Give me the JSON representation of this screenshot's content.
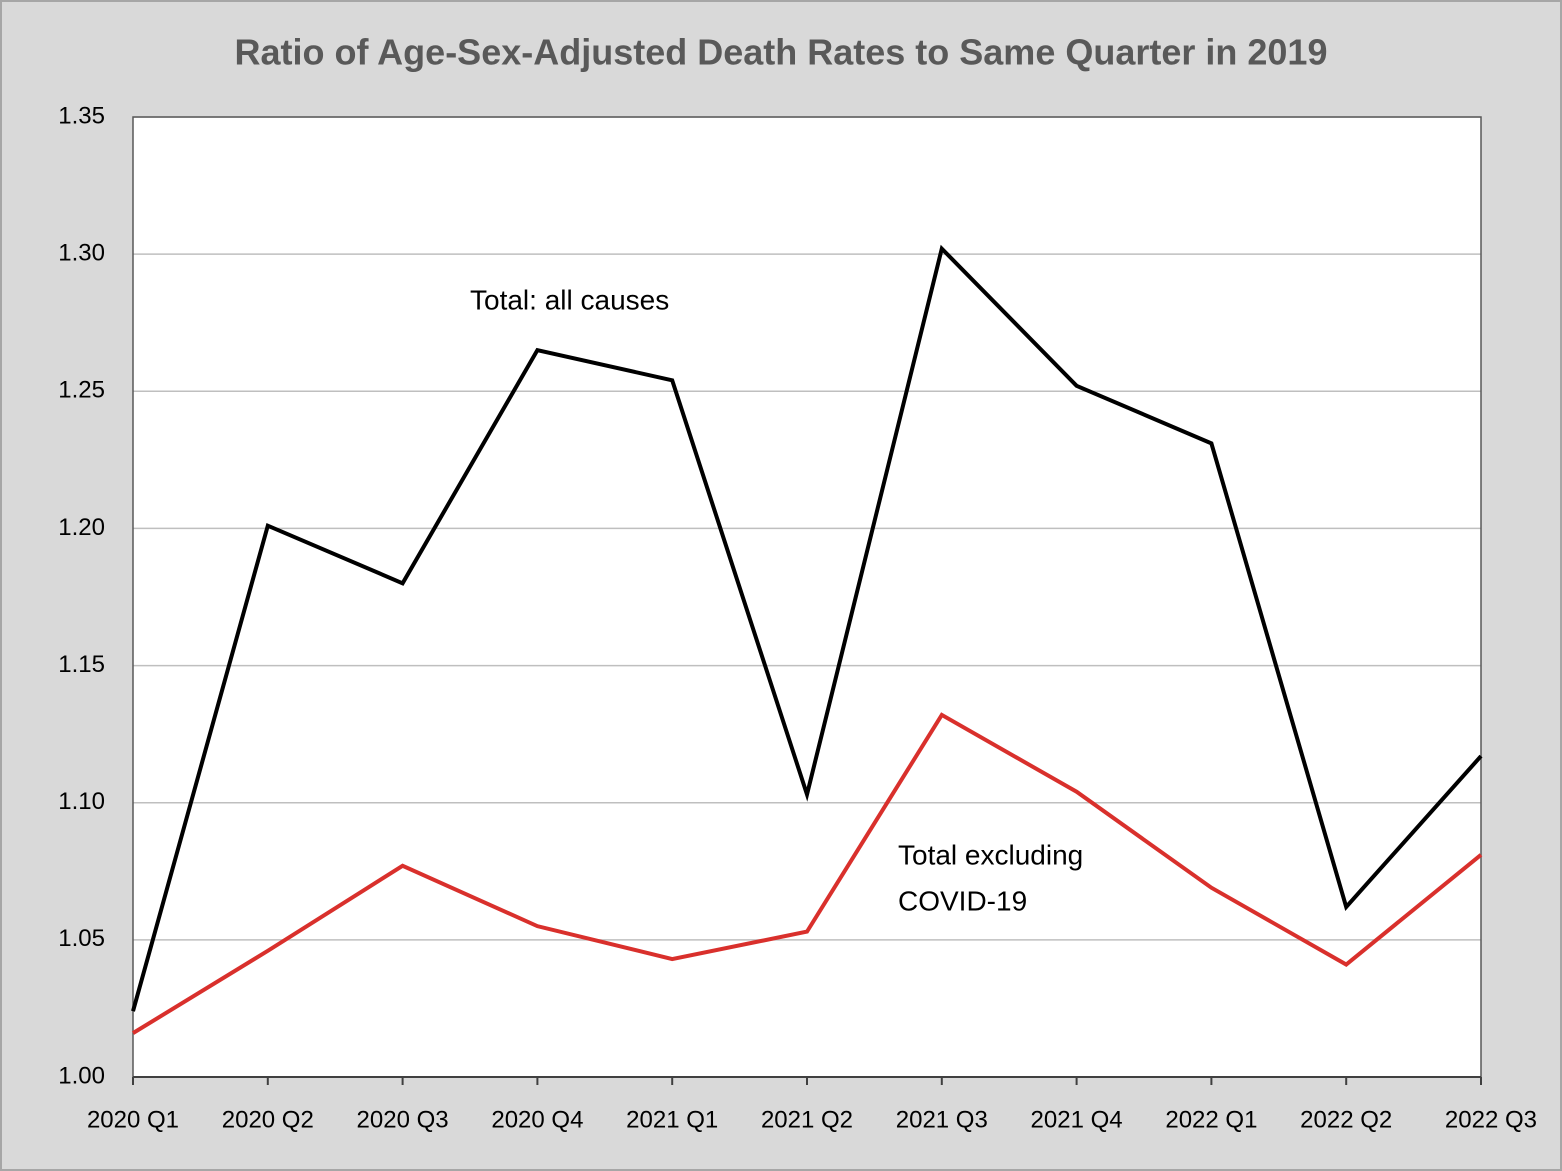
{
  "chart_data": {
    "type": "line",
    "title": "Ratio of Age-Sex-Adjusted Death Rates to Same Quarter in 2019",
    "categories": [
      "2020 Q1",
      "2020 Q2",
      "2020 Q3",
      "2020 Q4",
      "2021 Q1",
      "2021 Q2",
      "2021 Q3",
      "2021 Q4",
      "2022 Q1",
      "2022 Q2",
      "2022 Q3"
    ],
    "series": [
      {
        "color": "#000000",
        "values": [
          1.024,
          1.201,
          1.18,
          1.265,
          1.254,
          1.103,
          1.302,
          1.252,
          1.231,
          1.062,
          1.117
        ]
      },
      {
        "color": "#d9302c",
        "values": [
          1.016,
          1.046,
          1.077,
          1.055,
          1.043,
          1.053,
          1.132,
          1.104,
          1.069,
          1.041,
          1.081
        ]
      }
    ],
    "annotations": [
      "Total: all causes",
      "Total excluding",
      "COVID-19"
    ],
    "ylim": [
      1.0,
      1.35
    ],
    "yticks": [
      {
        "value": 1.0,
        "label": "1.00"
      },
      1.05,
      {
        "value": 1.1,
        "label": "1.10"
      },
      1.15,
      {
        "value": 1.2,
        "label": "1.20"
      },
      1.25,
      {
        "value": 1.3,
        "label": "1.30"
      },
      1.35
    ],
    "grid": true
  }
}
